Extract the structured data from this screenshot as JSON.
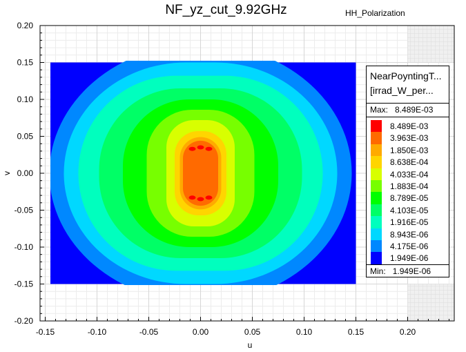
{
  "chart_data": {
    "type": "heatmap",
    "title": "NF_yz_cut_9.92GHz",
    "subtitle": "HH_Polarization",
    "xlabel": "u",
    "ylabel": "v",
    "xlim": [
      -0.155,
      0.245
    ],
    "ylim": [
      -0.2,
      0.2
    ],
    "x_ticks": [
      "-0.15",
      "-0.10",
      "-0.05",
      "0.00",
      "0.05",
      "0.10",
      "0.15",
      "0.20"
    ],
    "x_tick_values": [
      -0.15,
      -0.1,
      -0.05,
      0.0,
      0.05,
      0.1,
      0.15,
      0.2
    ],
    "y_ticks": [
      "0.20",
      "0.15",
      "0.10",
      "0.05",
      "0.00",
      "-0.05",
      "-0.10",
      "-0.15",
      "-0.20"
    ],
    "y_tick_values": [
      0.2,
      0.15,
      0.1,
      0.05,
      0.0,
      -0.05,
      -0.1,
      -0.15,
      -0.2
    ],
    "data_extent": {
      "u": [
        -0.15,
        0.15
      ],
      "v": [
        -0.15,
        0.15
      ]
    },
    "grid": true,
    "legend": {
      "name_line1": "NearPoyntingT...",
      "name_line2": "[irrad_W_per...",
      "max_label": "Max:",
      "max_value": "8.489E-03",
      "min_label": "Min:",
      "min_value": "1.949E-06",
      "placement": "right",
      "levels": [
        "8.489E-03",
        "3.963E-03",
        "1.850E-03",
        "8.638E-04",
        "4.033E-04",
        "1.883E-04",
        "8.789E-05",
        "4.103E-05",
        "1.916E-05",
        "8.943E-06",
        "4.175E-06",
        "1.949E-06"
      ],
      "colors": [
        "#ff0000",
        "#ff6a00",
        "#ffaa00",
        "#ffd500",
        "#d8ff00",
        "#77ff00",
        "#00ff00",
        "#00ff66",
        "#00ffbe",
        "#00d8ff",
        "#0088ff",
        "#0000ff"
      ]
    }
  }
}
